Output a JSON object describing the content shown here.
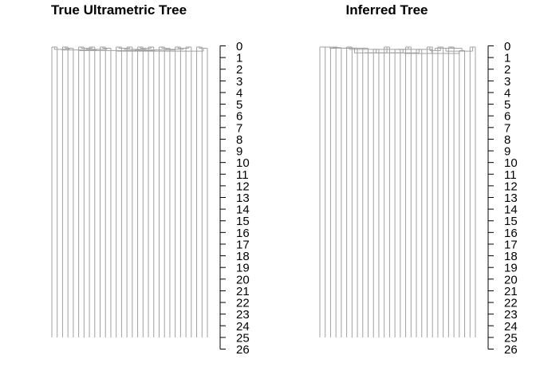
{
  "chart_data": [
    {
      "type": "dendrogram",
      "title": "True Ultrametric Tree",
      "ylim": [
        0,
        26
      ],
      "y_ticks": [
        0,
        1,
        2,
        3,
        4,
        5,
        6,
        7,
        8,
        9,
        10,
        11,
        12,
        13,
        14,
        15,
        16,
        17,
        18,
        19,
        20,
        21,
        22,
        23,
        24,
        25,
        26
      ],
      "y_axis_side": "right",
      "y_reversed": true,
      "leaf_count": 30,
      "leaf_depth": 25,
      "line_color": "#a0a0a0",
      "merges": [
        [
          -1,
          -2,
          0.1
        ],
        [
          -3,
          -4,
          0.1
        ],
        [
          -5,
          2,
          0.2
        ],
        [
          -6,
          -7,
          0.1
        ],
        [
          -8,
          -9,
          0.1
        ],
        [
          4,
          5,
          0.2
        ],
        [
          -10,
          -11,
          0.1
        ],
        [
          -12,
          7,
          0.2
        ],
        [
          -13,
          -14,
          0.1
        ],
        [
          -15,
          -16,
          0.1
        ],
        [
          9,
          10,
          0.2
        ],
        [
          -17,
          -18,
          0.1
        ],
        [
          -19,
          -20,
          0.1
        ],
        [
          12,
          13,
          0.2
        ],
        [
          -21,
          -22,
          0.1
        ],
        [
          -23,
          15,
          0.2
        ],
        [
          -24,
          -25,
          0.1
        ],
        [
          -26,
          -27,
          0.1
        ],
        [
          17,
          18,
          0.2
        ],
        [
          -28,
          -29,
          0.1
        ],
        [
          -30,
          20,
          0.2
        ],
        [
          1,
          3,
          0.3
        ],
        [
          6,
          8,
          0.3
        ],
        [
          11,
          14,
          0.3
        ],
        [
          16,
          19,
          0.3
        ],
        [
          22,
          23,
          0.35
        ],
        [
          24,
          25,
          0.35
        ],
        [
          26,
          27,
          0.4
        ],
        [
          21,
          28,
          0.45
        ]
      ]
    },
    {
      "type": "dendrogram",
      "title": "Inferred Tree",
      "ylim": [
        0,
        26
      ],
      "y_ticks": [
        0,
        1,
        2,
        3,
        4,
        5,
        6,
        7,
        8,
        9,
        10,
        11,
        12,
        13,
        14,
        15,
        16,
        17,
        18,
        19,
        20,
        21,
        22,
        23,
        24,
        25,
        26
      ],
      "y_axis_side": "right",
      "y_reversed": true,
      "leaf_count": 30,
      "leaf_depth": 25,
      "line_color": "#a0a0a0",
      "merges": [
        [
          -1,
          -2,
          0.1
        ],
        [
          -3,
          -4,
          0.2
        ],
        [
          -5,
          2,
          0.15
        ],
        [
          -6,
          -7,
          0.1
        ],
        [
          1,
          3,
          0.1
        ],
        [
          -8,
          5,
          0.2
        ],
        [
          -9,
          -10,
          0.2
        ],
        [
          -11,
          -12,
          0.3
        ],
        [
          -13,
          -14,
          0.1
        ],
        [
          -15,
          -16,
          0.3
        ],
        [
          -17,
          -18,
          0.1
        ],
        [
          10,
          11,
          0.3
        ],
        [
          -19,
          -20,
          0.3
        ],
        [
          -21,
          -22,
          0.1
        ],
        [
          -23,
          -24,
          0.1
        ],
        [
          14,
          15,
          0.4
        ],
        [
          -25,
          -26,
          0.1
        ],
        [
          -27,
          -28,
          0.4
        ],
        [
          -29,
          -30,
          0.1
        ],
        [
          17,
          18,
          0.2
        ],
        [
          16,
          20,
          0.2
        ],
        [
          19,
          21,
          0.45
        ],
        [
          6,
          7,
          0.2
        ],
        [
          8,
          23,
          0.6
        ],
        [
          9,
          24,
          0.6
        ],
        [
          12,
          25,
          0.6
        ],
        [
          13,
          26,
          0.6
        ],
        [
          27,
          22,
          0.65
        ],
        [
          4,
          28,
          0.3
        ]
      ]
    }
  ]
}
